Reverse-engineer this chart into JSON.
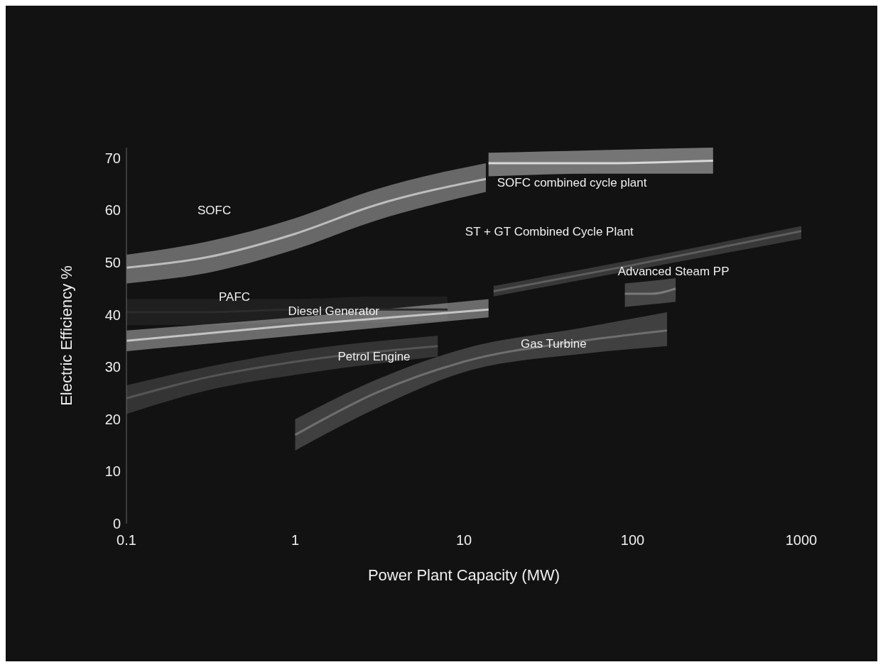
{
  "chart_data": {
    "type": "line",
    "line_style": "solid",
    "xlabel": "Power Plant Capacity (MW)",
    "ylabel": "Electric Efficiency %",
    "log": "x",
    "xlim": [
      0.1,
      1000
    ],
    "xticks": [
      0.1,
      1,
      10,
      100,
      1000
    ],
    "ylim": [
      0,
      72
    ],
    "yticks": [
      0,
      10,
      20,
      30,
      40,
      50,
      60,
      70
    ],
    "grid": false,
    "series": [
      {
        "name": "SOFC",
        "color": "#bdbdbd",
        "x": [
          0.1,
          0.3,
          1,
          3,
          13.5
        ],
        "values": [
          49,
          51,
          55.5,
          61,
          66
        ],
        "lower": [
          46,
          48,
          52.5,
          58,
          63.5
        ],
        "upper": [
          51.5,
          54,
          58.5,
          64,
          69
        ]
      },
      {
        "name": "SOFC combined cycle plant",
        "color": "#d8d8d8",
        "x": [
          14,
          60,
          300
        ],
        "values": [
          69,
          69,
          69.5
        ],
        "lower": [
          66.5,
          67,
          67
        ],
        "upper": [
          71,
          71.5,
          72
        ]
      },
      {
        "name": "PAFC",
        "color": "#2c2c2c",
        "x": [
          0.1,
          0.3,
          1,
          3,
          8
        ],
        "values": [
          40.5,
          40.5,
          41,
          41,
          41
        ],
        "lower": [
          38,
          38,
          38.5,
          38.5,
          39
        ],
        "upper": [
          43,
          43,
          43,
          43.5,
          43.5
        ]
      },
      {
        "name": "ST + GT Combined Cycle Plant",
        "color": "#5e5e5e",
        "x": [
          15,
          100,
          1000
        ],
        "values": [
          44.5,
          49.5,
          56
        ],
        "lower": [
          43.5,
          48.5,
          54.5
        ],
        "upper": [
          45.5,
          50.5,
          57
        ]
      },
      {
        "name": "Advanced Steam PP",
        "color": "#7a7a7a",
        "x": [
          90,
          130,
          180
        ],
        "values": [
          44,
          44,
          45
        ],
        "lower": [
          41.5,
          42,
          42.5
        ],
        "upper": [
          46,
          46.5,
          47
        ]
      },
      {
        "name": "Diesel Generator",
        "color": "#c4c4c4",
        "x": [
          0.1,
          1,
          14
        ],
        "values": [
          35,
          38,
          41
        ],
        "lower": [
          33,
          36,
          39.5
        ],
        "upper": [
          37,
          39.5,
          43
        ]
      },
      {
        "name": "Petrol Engine",
        "color": "#555555",
        "x": [
          0.1,
          0.3,
          1,
          7
        ],
        "values": [
          24,
          28,
          31,
          34
        ],
        "lower": [
          21,
          25.5,
          28.5,
          32
        ],
        "upper": [
          26.5,
          30,
          33,
          36
        ]
      },
      {
        "name": "Gas Turbine",
        "color": "#6e6e6e",
        "x": [
          1,
          3,
          10,
          50,
          160
        ],
        "values": [
          17,
          25,
          31,
          35,
          37
        ],
        "lower": [
          14,
          22,
          29,
          32.5,
          34
        ],
        "upper": [
          20,
          27.5,
          33.5,
          37.5,
          40.5
        ]
      }
    ]
  }
}
